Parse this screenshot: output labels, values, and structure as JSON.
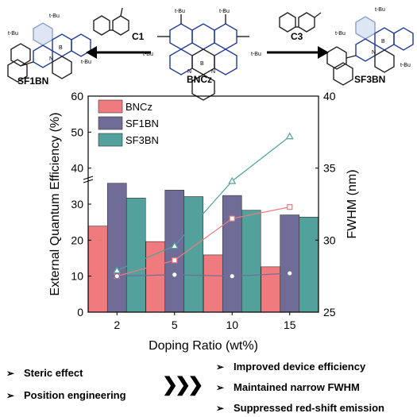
{
  "molecules": {
    "center": "BNCz",
    "left": "SF1BN",
    "right": "SF3BN",
    "arrow_left": "C1",
    "arrow_right": "C3",
    "group": "t-Bu",
    "atom_b": "B",
    "atom_n": "N"
  },
  "chart_data": {
    "type": "bar+line",
    "categories": [
      "2",
      "5",
      "10",
      "15"
    ],
    "xlabel": "Doping Ratio (wt%)",
    "ylabel_left": "External Quantum Efficiency (%)",
    "ylabel_right": "FWHM (nm)",
    "ylim_left": [
      0,
      60
    ],
    "yticks_left": [
      "0",
      "10",
      "20",
      "30",
      "40",
      "50",
      "60"
    ],
    "ylim_right": [
      25,
      40
    ],
    "yticks_right": [
      "25",
      "30",
      "35",
      "40"
    ],
    "left_axis_break": true,
    "legend_placement": "top-left",
    "series": [
      {
        "name": "BNCz",
        "color": "#f07b7e",
        "eqe": [
          23.9,
          19.6,
          15.9,
          12.6
        ],
        "fwhm": [
          27.5,
          28.6,
          31.5,
          32.3
        ]
      },
      {
        "name": "SF1BN",
        "color": "#6f6d97",
        "eqe": [
          35.8,
          33.9,
          32.4,
          27.0
        ],
        "fwhm": [
          27.5,
          27.6,
          27.5,
          27.7
        ]
      },
      {
        "name": "SF3BN",
        "color": "#52a19c",
        "eqe": [
          31.7,
          32.1,
          28.3,
          26.4
        ],
        "fwhm": [
          27.9,
          29.6,
          34.1,
          37.2
        ]
      }
    ]
  },
  "summary": {
    "left": [
      "Steric effect",
      "Position engineering"
    ],
    "right": [
      "Improved device efficiency",
      "Maintained narrow FWHM",
      "Suppressed red-shift emission"
    ],
    "bullet": "➢",
    "arrow": "❯❯❯"
  }
}
